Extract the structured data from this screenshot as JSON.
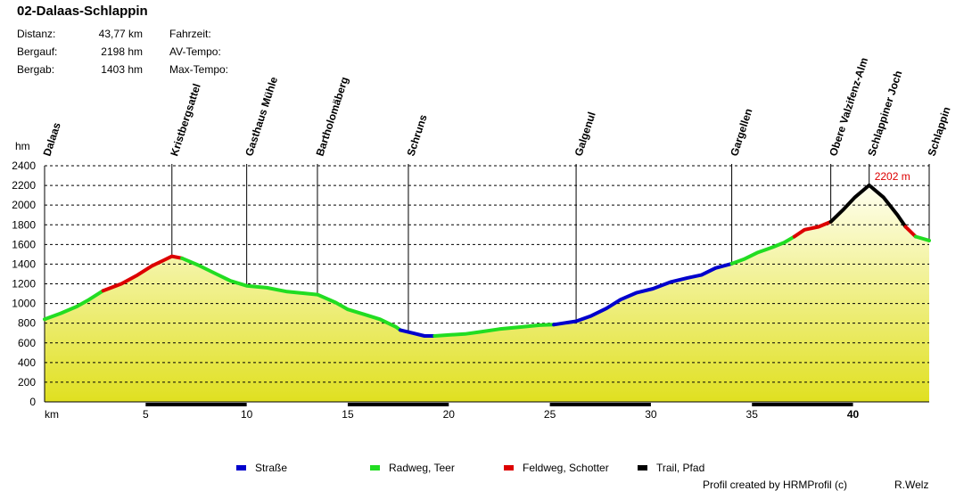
{
  "title": "02-Dalaas-Schlappin",
  "stats": [
    {
      "label": "Distanz:",
      "value": "43,77 km"
    },
    {
      "label": "Bergauf:",
      "value": "2198 hm"
    },
    {
      "label": "Bergab:",
      "value": "1403 hm"
    }
  ],
  "extra_labels": [
    "Fahrzeit:",
    "AV-Tempo:",
    "Max-Tempo:"
  ],
  "credit": "Profil created by HRMProfil (c)",
  "author": "R.Welz",
  "colors": {
    "strasse": "#0000cc",
    "radweg": "#22dd22",
    "feldweg": "#dd0000",
    "trail": "#000000",
    "fill_top": "#fffff0",
    "fill_bottom": "#e0e020"
  },
  "chart_data": {
    "type": "area",
    "ylabel": "hm",
    "xlabel": "km",
    "xlim": [
      0,
      43.77
    ],
    "ylim": [
      0,
      2400
    ],
    "yticks": [
      0,
      200,
      400,
      600,
      800,
      1000,
      1200,
      1400,
      1600,
      1800,
      2000,
      2200,
      2400
    ],
    "xticks": [
      5,
      10,
      15,
      20,
      25,
      30,
      35,
      40
    ],
    "grid": true,
    "legend_position": "bottom",
    "legend": [
      {
        "name": "Straße",
        "key": "strasse"
      },
      {
        "name": "Radweg, Teer",
        "key": "radweg"
      },
      {
        "name": "Feldweg, Schotter",
        "key": "feldweg"
      },
      {
        "name": "Trail, Pfad",
        "key": "trail"
      }
    ],
    "max_label": "2202 m",
    "max_point": {
      "x": 40.8,
      "y": 2202
    },
    "waypoints": [
      {
        "name": "Dalaas",
        "x": 0
      },
      {
        "name": "Kristbergsattel",
        "x": 6.3
      },
      {
        "name": "Gasthaus Mühle",
        "x": 10
      },
      {
        "name": "Bartholomäberg",
        "x": 13.5
      },
      {
        "name": "Schruns",
        "x": 18
      },
      {
        "name": "Galgenul",
        "x": 26.3
      },
      {
        "name": "Gargellen",
        "x": 34
      },
      {
        "name": "Obere Valzifenz-Alm",
        "x": 38.9
      },
      {
        "name": "Schlappiner Joch",
        "x": 40.8
      },
      {
        "name": "Schlappin",
        "x": 43.77
      }
    ],
    "segments": [
      {
        "type": "radweg",
        "points": [
          [
            0,
            840
          ],
          [
            0.8,
            900
          ],
          [
            1.6,
            970
          ],
          [
            2.2,
            1040
          ],
          [
            2.9,
            1130
          ]
        ]
      },
      {
        "type": "feldweg",
        "points": [
          [
            2.9,
            1130
          ],
          [
            3.8,
            1200
          ],
          [
            4.6,
            1290
          ],
          [
            5.3,
            1380
          ],
          [
            5.9,
            1440
          ],
          [
            6.3,
            1480
          ],
          [
            6.8,
            1460
          ]
        ]
      },
      {
        "type": "radweg",
        "points": [
          [
            6.8,
            1460
          ],
          [
            7.6,
            1390
          ],
          [
            8.5,
            1300
          ],
          [
            9.2,
            1230
          ],
          [
            10,
            1180
          ],
          [
            11,
            1160
          ],
          [
            12,
            1120
          ],
          [
            13.5,
            1090
          ],
          [
            14.4,
            1010
          ],
          [
            15,
            940
          ],
          [
            15.8,
            890
          ],
          [
            16.6,
            840
          ],
          [
            17.4,
            760
          ],
          [
            17.6,
            730
          ]
        ]
      },
      {
        "type": "strasse",
        "points": [
          [
            17.6,
            730
          ],
          [
            18.2,
            700
          ],
          [
            18.8,
            670
          ],
          [
            19.3,
            670
          ]
        ]
      },
      {
        "type": "radweg",
        "points": [
          [
            19.3,
            670
          ],
          [
            20,
            680
          ],
          [
            20.8,
            690
          ],
          [
            21.5,
            710
          ],
          [
            22.5,
            740
          ],
          [
            23.5,
            760
          ],
          [
            24.5,
            780
          ],
          [
            25.2,
            785
          ]
        ]
      },
      {
        "type": "strasse",
        "points": [
          [
            25.2,
            785
          ],
          [
            26.3,
            820
          ],
          [
            27,
            870
          ],
          [
            27.8,
            950
          ],
          [
            28.5,
            1040
          ],
          [
            29.3,
            1110
          ],
          [
            30.1,
            1150
          ],
          [
            31,
            1220
          ],
          [
            31.8,
            1260
          ],
          [
            32.5,
            1290
          ],
          [
            33.2,
            1360
          ],
          [
            34,
            1405
          ]
        ]
      },
      {
        "type": "radweg",
        "points": [
          [
            34,
            1405
          ],
          [
            34.6,
            1450
          ],
          [
            35.3,
            1520
          ],
          [
            36,
            1570
          ],
          [
            36.6,
            1620
          ],
          [
            37.1,
            1680
          ]
        ]
      },
      {
        "type": "feldweg",
        "points": [
          [
            37.1,
            1680
          ],
          [
            37.6,
            1750
          ],
          [
            38.3,
            1780
          ],
          [
            38.9,
            1830
          ]
        ]
      },
      {
        "type": "trail",
        "points": [
          [
            38.9,
            1830
          ],
          [
            39.5,
            1950
          ],
          [
            40.1,
            2080
          ],
          [
            40.8,
            2202
          ],
          [
            41.5,
            2080
          ],
          [
            42.2,
            1900
          ],
          [
            42.6,
            1780
          ]
        ]
      },
      {
        "type": "feldweg",
        "points": [
          [
            42.6,
            1780
          ],
          [
            43.1,
            1680
          ]
        ]
      },
      {
        "type": "radweg",
        "points": [
          [
            43.1,
            1680
          ],
          [
            43.77,
            1640
          ]
        ]
      }
    ]
  }
}
